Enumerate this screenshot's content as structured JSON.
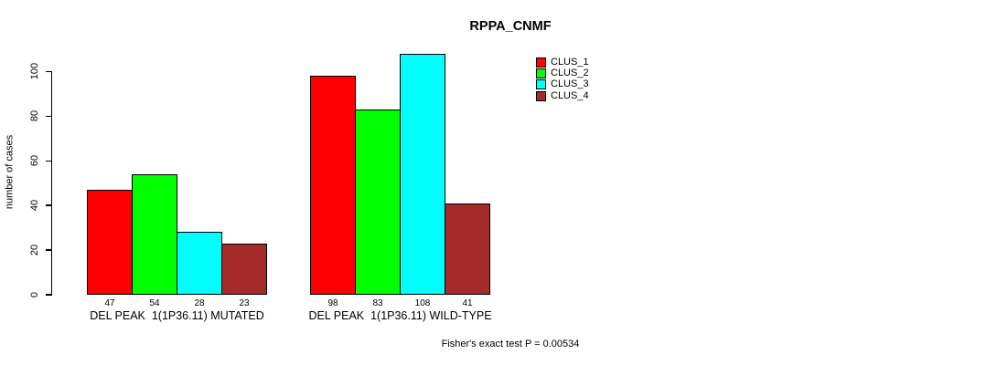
{
  "title": "RPPA_CNMF",
  "chart_data": {
    "type": "bar",
    "title": "RPPA_CNMF",
    "xlabel": "",
    "ylabel": "number of cases",
    "ylim": [
      0,
      110
    ],
    "yticks": [
      0,
      20,
      40,
      60,
      80,
      100
    ],
    "grid": false,
    "legend_position": "top-right",
    "legend": [
      {
        "label": "CLUS_1",
        "color": "#ff0000"
      },
      {
        "label": "CLUS_2",
        "color": "#00ff00"
      },
      {
        "label": "CLUS_3",
        "color": "#00ffff"
      },
      {
        "label": "CLUS_4",
        "color": "#a52a2a"
      }
    ],
    "groups": [
      {
        "label": "DEL PEAK  1(1P36.11) MUTATED",
        "series": [
          "CLUS_1",
          "CLUS_2",
          "CLUS_3",
          "CLUS_4"
        ],
        "values": [
          47,
          54,
          28,
          23
        ]
      },
      {
        "label": "DEL PEAK  1(1P36.11) WILD-TYPE",
        "series": [
          "CLUS_1",
          "CLUS_2",
          "CLUS_3",
          "CLUS_4"
        ],
        "values": [
          98,
          83,
          108,
          41
        ]
      }
    ],
    "bar_value_labels": [
      47,
      54,
      28,
      23,
      98,
      83,
      108,
      41
    ],
    "footnote": "Fisher's exact test P = 0.00534"
  },
  "colors": {
    "background": "#ffffff",
    "axis": "#000000",
    "text": "#000000"
  }
}
